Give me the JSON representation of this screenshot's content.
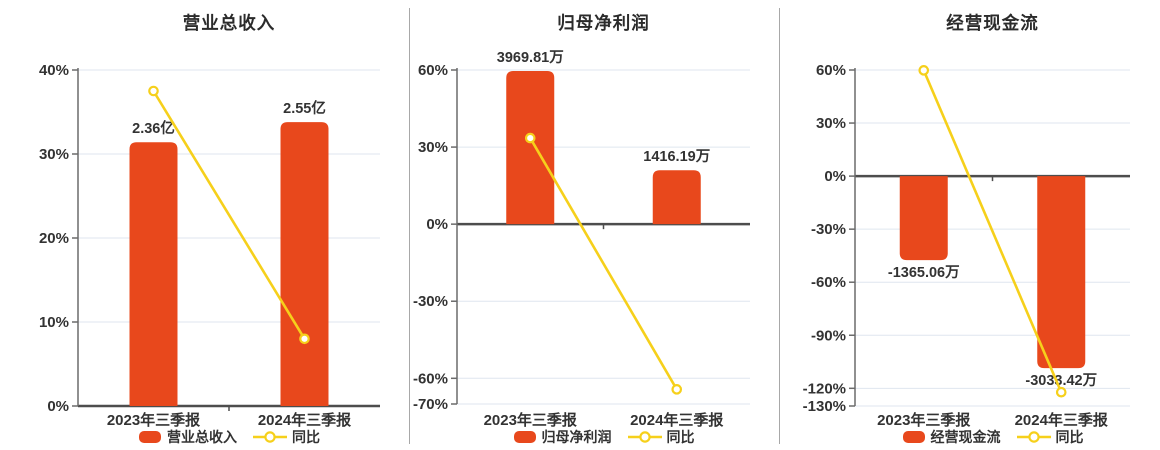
{
  "colors": {
    "bar": "#e8481c",
    "line": "#f6d01b",
    "marker_fill": "#ffffff",
    "grid": "#dfe6ef",
    "axis": "#6b6b6b",
    "zero_line": "#4d4d4d",
    "text": "#333333",
    "divider": "#a8a8a8"
  },
  "chart_data": [
    {
      "type": "bar",
      "title": "营业总收入",
      "categories": [
        "2023年三季报",
        "2024年三季报"
      ],
      "series": [
        {
          "type": "bar",
          "name": "营业总收入",
          "value_labels": [
            "2.36亿",
            "2.55亿"
          ],
          "plotted_pct": [
            31.4,
            33.8
          ]
        },
        {
          "type": "line",
          "name": "同比",
          "values_pct": [
            37.5,
            8.0
          ]
        }
      ],
      "ylim": [
        0,
        40
      ],
      "y_ticks": [
        0,
        10,
        20,
        30,
        40
      ],
      "y_tick_suffix": "%",
      "legend": [
        "营业总收入",
        "同比"
      ],
      "legend_position": "bottom",
      "grid": true
    },
    {
      "type": "bar",
      "title": "归母净利润",
      "categories": [
        "2023年三季报",
        "2024年三季报"
      ],
      "series": [
        {
          "type": "bar",
          "name": "归母净利润",
          "value_labels": [
            "3969.81万",
            "1416.19万"
          ],
          "plotted_pct": [
            59.6,
            21.0
          ]
        },
        {
          "type": "line",
          "name": "同比",
          "values_pct": [
            33.5,
            -64.3
          ]
        }
      ],
      "ylim": [
        -70,
        60
      ],
      "y_ticks": [
        -70,
        -60,
        -30,
        0,
        30,
        60
      ],
      "y_tick_suffix": "%",
      "legend": [
        "归母净利润",
        "同比"
      ],
      "legend_position": "bottom",
      "grid": true
    },
    {
      "type": "bar",
      "title": "经营现金流",
      "categories": [
        "2023年三季报",
        "2024年三季报"
      ],
      "series": [
        {
          "type": "bar",
          "name": "经营现金流",
          "value_labels": [
            "-1365.06万",
            "-3033.42万"
          ],
          "plotted_pct": [
            -47.5,
            -108.6
          ]
        },
        {
          "type": "line",
          "name": "同比",
          "values_pct": [
            59.8,
            -122.2
          ]
        }
      ],
      "ylim": [
        -130,
        60
      ],
      "y_ticks": [
        -130,
        -120,
        -90,
        -60,
        -30,
        0,
        30,
        60
      ],
      "y_tick_suffix": "%",
      "legend": [
        "经营现金流",
        "同比"
      ],
      "legend_position": "bottom",
      "grid": true
    }
  ]
}
